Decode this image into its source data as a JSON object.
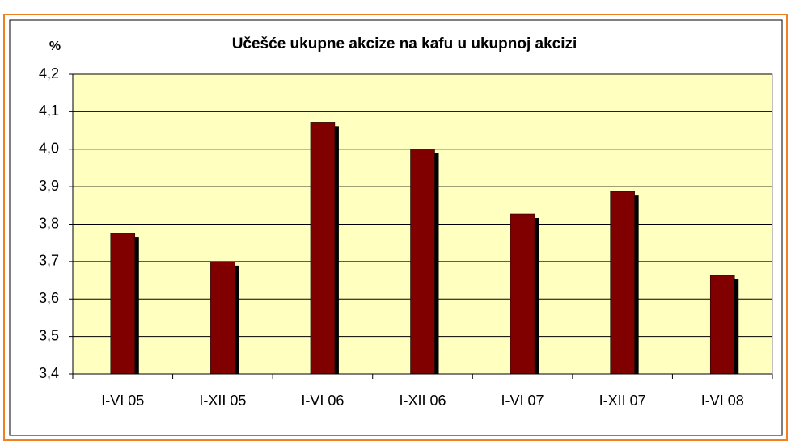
{
  "chart_data": {
    "type": "bar",
    "title": "Učešće ukupne akcize na kafu u ukupnoj akcizi",
    "ylabel": "%",
    "categories": [
      "I-VI 05",
      "I-XII 05",
      "I-VI 06",
      "I-XII 06",
      "I-VI 07",
      "I-XII 07",
      "I-VI 08"
    ],
    "values": [
      3.775,
      3.7,
      4.072,
      4.0,
      3.827,
      3.887,
      3.663
    ],
    "color": "#800000",
    "ylim": [
      3.4,
      4.2
    ],
    "yticks": [
      {
        "value": 3.4,
        "label": "3,4"
      },
      {
        "value": 3.5,
        "label": "3,5"
      },
      {
        "value": 3.6,
        "label": "3,6"
      },
      {
        "value": 3.7,
        "label": "3,7"
      },
      {
        "value": 3.8,
        "label": "3,8"
      },
      {
        "value": 3.9,
        "label": "3,9"
      },
      {
        "value": 4.0,
        "label": "4,0"
      },
      {
        "value": 4.1,
        "label": "4,1"
      },
      {
        "value": 4.2,
        "label": "4,2"
      }
    ],
    "grid": true
  }
}
